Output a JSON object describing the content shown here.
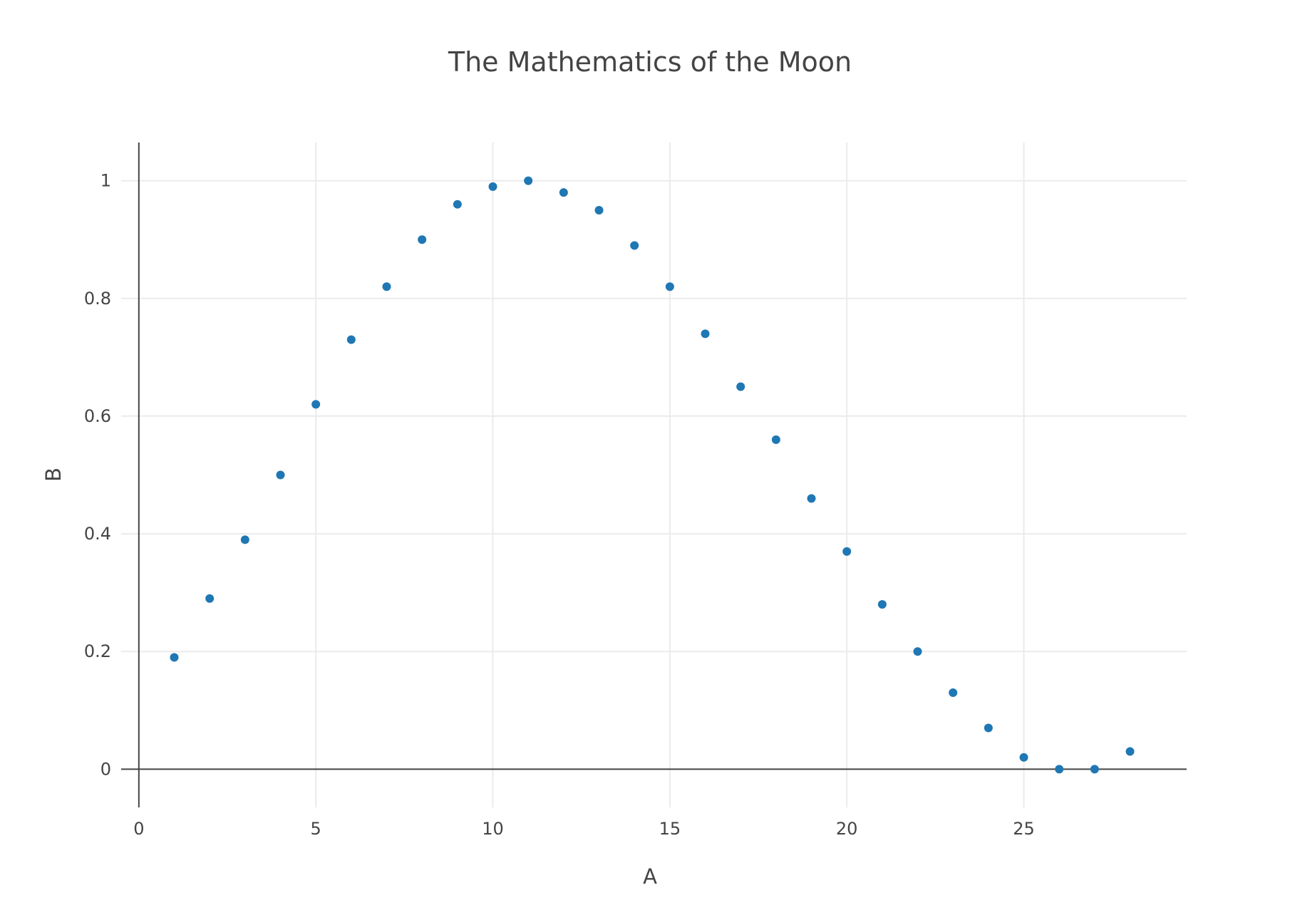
{
  "chart_data": {
    "type": "scatter",
    "title": "The Mathematics of the Moon",
    "xlabel": "A",
    "ylabel": "B",
    "xlim": [
      -0.5,
      29.6
    ],
    "ylim": [
      -0.065,
      1.065
    ],
    "x_ticks": [
      0,
      5,
      10,
      15,
      20,
      25
    ],
    "x_tick_labels": [
      "0",
      "5",
      "10",
      "15",
      "20",
      "25"
    ],
    "y_ticks": [
      0,
      0.2,
      0.4,
      0.6,
      0.8,
      1
    ],
    "y_tick_labels": [
      "0",
      "0.2",
      "0.4",
      "0.6",
      "0.8",
      "1"
    ],
    "grid": true,
    "legend": "none",
    "marker_color": "#1f77b4",
    "series": [
      {
        "x": [
          1,
          2,
          3,
          4,
          5,
          6,
          7,
          8,
          9,
          10,
          11,
          12,
          13,
          14,
          15,
          16,
          17,
          18,
          19,
          20,
          21,
          22,
          23,
          24,
          25,
          26,
          27,
          28
        ],
        "y": [
          0.19,
          0.29,
          0.39,
          0.5,
          0.62,
          0.73,
          0.82,
          0.9,
          0.96,
          0.99,
          1.0,
          0.98,
          0.95,
          0.89,
          0.82,
          0.74,
          0.65,
          0.56,
          0.46,
          0.37,
          0.28,
          0.2,
          0.13,
          0.07,
          0.02,
          0.0,
          0.0,
          0.03
        ]
      }
    ]
  }
}
